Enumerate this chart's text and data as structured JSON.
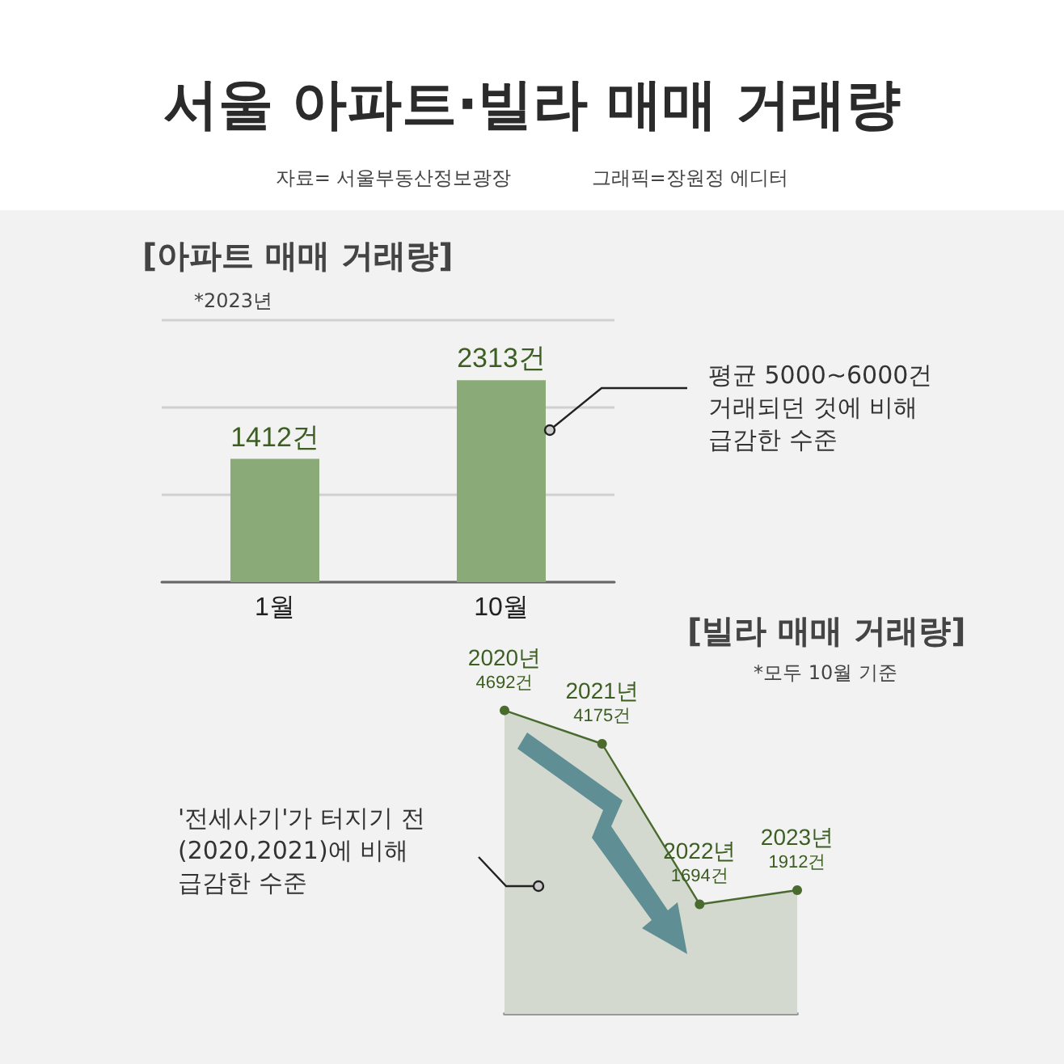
{
  "chart_data": [
    {
      "type": "other",
      "title": "서울 아파트·빌라 매매 거래량",
      "subtitle": "자료= 서울부동산정보광장             그래픽=장원정 에디터"
    },
    {
      "type": "bar",
      "title": "[아파트 매매 거래량]",
      "subtitle": "*2023년",
      "categories": [
        "1월",
        "10월"
      ],
      "values": [
        1412,
        2313
      ],
      "value_labels": [
        "1412건",
        "2313건"
      ],
      "color": "#8aab78",
      "ylim": [
        0,
        3000
      ],
      "yticks": [
        {
          "value": 0,
          "label": null
        },
        {
          "value": 1000,
          "label": null
        },
        {
          "value": 2000,
          "label": null
        },
        {
          "value": 3000,
          "label": null
        }
      ],
      "grid": "y",
      "tick_labels": "x",
      "annotations": [
        "평균 5000~6000건\n거래되던 것에 비해\n급감한 수준"
      ]
    },
    {
      "type": "area",
      "title": "[빌라 매매 거래량]",
      "subtitle": "*모두 10월 기준",
      "categories": [
        "2020년",
        "2021년",
        "2022년",
        "2023년"
      ],
      "values": [
        4692,
        4175,
        1694,
        1912
      ],
      "value_labels": [
        "4692건",
        "4175건",
        "1694건",
        "1912건"
      ],
      "color": "#4a6b2e",
      "marker": "circle",
      "tick_labels": false,
      "annotations": [
        "'전세사기'가 터지기 전\n(2020,2021)에 비해\n급감한 수준"
      ]
    }
  ]
}
